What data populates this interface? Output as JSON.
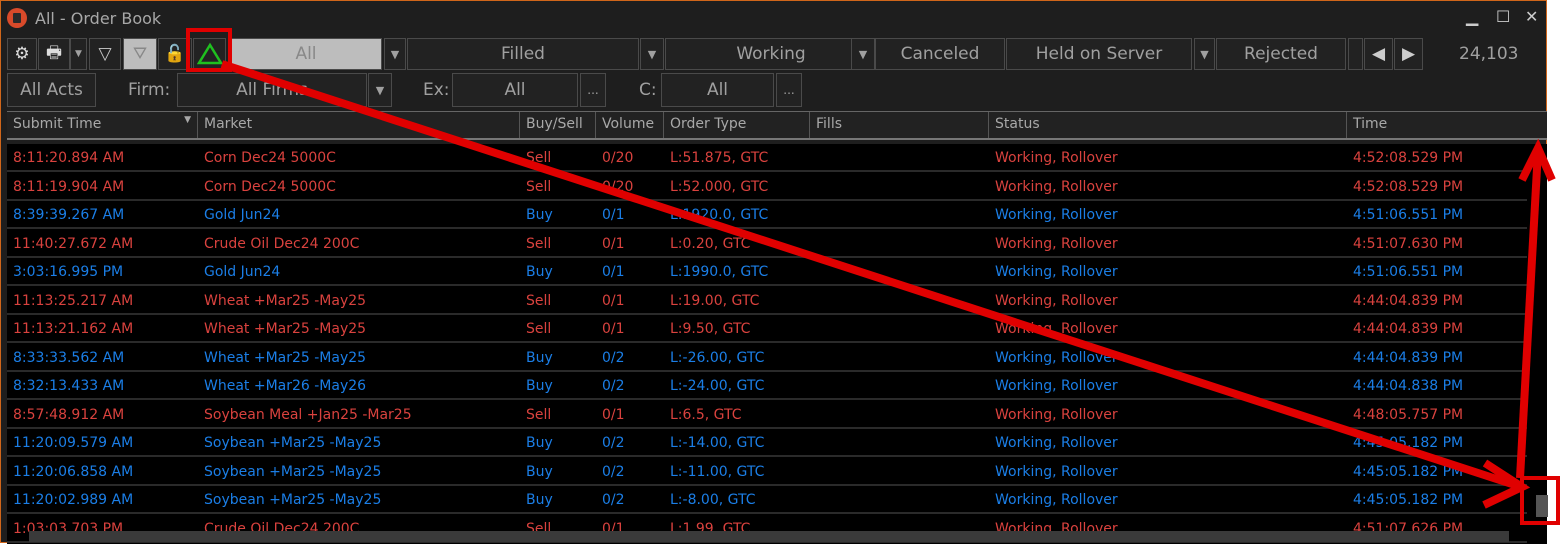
{
  "window": {
    "title": "All - Order Book"
  },
  "toolbar": {
    "tabs": [
      {
        "label": "All",
        "selected": true
      },
      {
        "label": "Filled"
      },
      {
        "label": "Working"
      },
      {
        "label": "Canceled"
      },
      {
        "label": "Held on Server"
      },
      {
        "label": "Rejected"
      }
    ],
    "count": "24,103",
    "icons": [
      "gear-icon",
      "printer-icon",
      "filter-outline-icon",
      "filter-icon",
      "unlock-icon",
      "triangle-up-icon"
    ]
  },
  "filters": {
    "accounts_button": "All Acts",
    "firm_label": "Firm:",
    "firm_value": "All Firms",
    "ex_label": "Ex:",
    "ex_value": "All",
    "c_label": "C:",
    "c_value": "All",
    "more": "..."
  },
  "columns": [
    "Submit Time",
    "Market",
    "Buy/Sell",
    "Volume",
    "Order Type",
    "Fills",
    "Status",
    "Time"
  ],
  "colors": {
    "sell": "#d9423e",
    "buy": "#1b7ee6",
    "annotation": "#e00000",
    "highlight": "#1fc01f"
  },
  "rows": [
    [
      "8:11:20.894 AM",
      "Corn Dec24 5000C",
      "Sell",
      "0/20",
      "L:51.875, GTC",
      "",
      "Working, Rollover",
      "4:52:08.529 PM"
    ],
    [
      "8:11:19.904 AM",
      "Corn Dec24 5000C",
      "Sell",
      "0/20",
      "L:52.000, GTC",
      "",
      "Working, Rollover",
      "4:52:08.529 PM"
    ],
    [
      "8:39:39.267 AM",
      "Gold Jun24",
      "Buy",
      "0/1",
      "L:1920.0, GTC",
      "",
      "Working, Rollover",
      "4:51:06.551 PM"
    ],
    [
      "11:40:27.672 AM",
      "Crude Oil Dec24 200C",
      "Sell",
      "0/1",
      "L:0.20, GTC",
      "",
      "Working, Rollover",
      "4:51:07.630 PM"
    ],
    [
      "3:03:16.995 PM",
      "Gold Jun24",
      "Buy",
      "0/1",
      "L:1990.0, GTC",
      "",
      "Working, Rollover",
      "4:51:06.551 PM"
    ],
    [
      "11:13:25.217 AM",
      "Wheat  +Mar25 -May25",
      "Sell",
      "0/1",
      "L:19.00, GTC",
      "",
      "Working, Rollover",
      "4:44:04.839 PM"
    ],
    [
      "11:13:21.162 AM",
      "Wheat  +Mar25 -May25",
      "Sell",
      "0/1",
      "L:9.50, GTC",
      "",
      "Working, Rollover",
      "4:44:04.839 PM"
    ],
    [
      "8:33:33.562 AM",
      "Wheat  +Mar25 -May25",
      "Buy",
      "0/2",
      "L:-26.00, GTC",
      "",
      "Working, Rollover",
      "4:44:04.839 PM"
    ],
    [
      "8:32:13.433 AM",
      "Wheat  +Mar26 -May26",
      "Buy",
      "0/2",
      "L:-24.00, GTC",
      "",
      "Working, Rollover",
      "4:44:04.838 PM"
    ],
    [
      "8:57:48.912 AM",
      "Soybean Meal  +Jan25 -Mar25",
      "Sell",
      "0/1",
      "L:6.5, GTC",
      "",
      "Working, Rollover",
      "4:48:05.757 PM"
    ],
    [
      "11:20:09.579 AM",
      "Soybean  +Mar25 -May25",
      "Buy",
      "0/2",
      "L:-14.00, GTC",
      "",
      "Working, Rollover",
      "4:45:05.182 PM"
    ],
    [
      "11:20:06.858 AM",
      "Soybean  +Mar25 -May25",
      "Buy",
      "0/2",
      "L:-11.00, GTC",
      "",
      "Working, Rollover",
      "4:45:05.182 PM"
    ],
    [
      "11:20:02.989 AM",
      "Soybean  +Mar25 -May25",
      "Buy",
      "0/2",
      "L:-8.00, GTC",
      "",
      "Working, Rollover",
      "4:45:05.182 PM"
    ],
    [
      "1:03:03.703 PM",
      "Crude Oil Dec24 200C",
      "Sell",
      "0/1",
      "L:1.99, GTC",
      "",
      "Working, Rollover",
      "4:51:07.626 PM"
    ]
  ]
}
